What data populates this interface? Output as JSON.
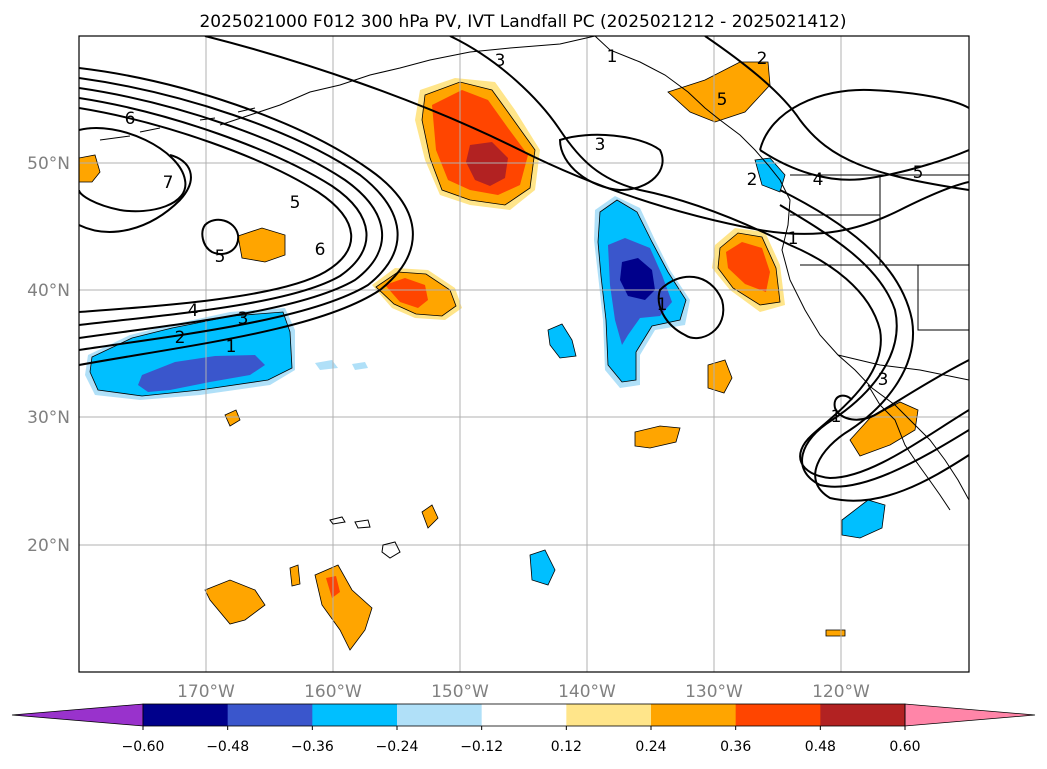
{
  "chart_data": {
    "type": "contour-map",
    "title": "2025021000 F012 300 hPa PV, IVT Landfall PC (2025021212 - 2025021412)",
    "lon_range": [
      -180,
      -110
    ],
    "lat_range": [
      10,
      60
    ],
    "x_ticks": [
      "170°W",
      "160°W",
      "150°W",
      "140°W",
      "130°W",
      "120°W"
    ],
    "y_ticks": [
      "50°N",
      "40°N",
      "30°N",
      "20°N"
    ],
    "grid": true,
    "colorbar": {
      "levels": [
        -0.6,
        -0.48,
        -0.36,
        -0.24,
        -0.12,
        0.12,
        0.24,
        0.36,
        0.48,
        0.6
      ],
      "tick_labels": [
        "−0.60",
        "−0.48",
        "−0.36",
        "−0.24",
        "−0.12",
        "0.12",
        "0.24",
        "0.36",
        "0.48",
        "0.60"
      ],
      "colors": [
        "#9932cc",
        "#00008b",
        "#3a56cc",
        "#00bfff",
        "#b0e0f8",
        "#ffffff",
        "#ffe58a",
        "#ffa500",
        "#ff4500",
        "#b22222",
        "#ff85a8"
      ],
      "extend": "both"
    },
    "contour_labels": [
      "6",
      "7",
      "5",
      "5",
      "6",
      "4",
      "3",
      "2",
      "1",
      "3",
      "3",
      "1",
      "2",
      "2",
      "4",
      "1",
      "5",
      "1",
      "5",
      "3",
      "1"
    ],
    "anomalies": [
      {
        "lon": -149,
        "lat": 52,
        "peak": 0.48
      },
      {
        "lon": -126,
        "lat": 42,
        "peak": 0.36
      },
      {
        "lon": -136,
        "lat": 41,
        "peak": -0.48
      },
      {
        "lon": -167,
        "lat": 35,
        "peak": -0.36
      },
      {
        "lon": -154,
        "lat": 40,
        "peak": 0.36
      },
      {
        "lon": -119,
        "lat": 29,
        "peak": 0.24
      },
      {
        "lon": -160,
        "lat": 17,
        "peak": 0.36
      },
      {
        "lon": -167,
        "lat": 16,
        "peak": 0.24
      },
      {
        "lon": -118,
        "lat": 22,
        "peak": -0.24
      },
      {
        "lon": -143,
        "lat": 18,
        "peak": -0.24
      },
      {
        "lon": -126,
        "lat": 55,
        "peak": 0.24
      },
      {
        "lon": -126,
        "lat": 48,
        "peak": -0.24
      }
    ]
  }
}
